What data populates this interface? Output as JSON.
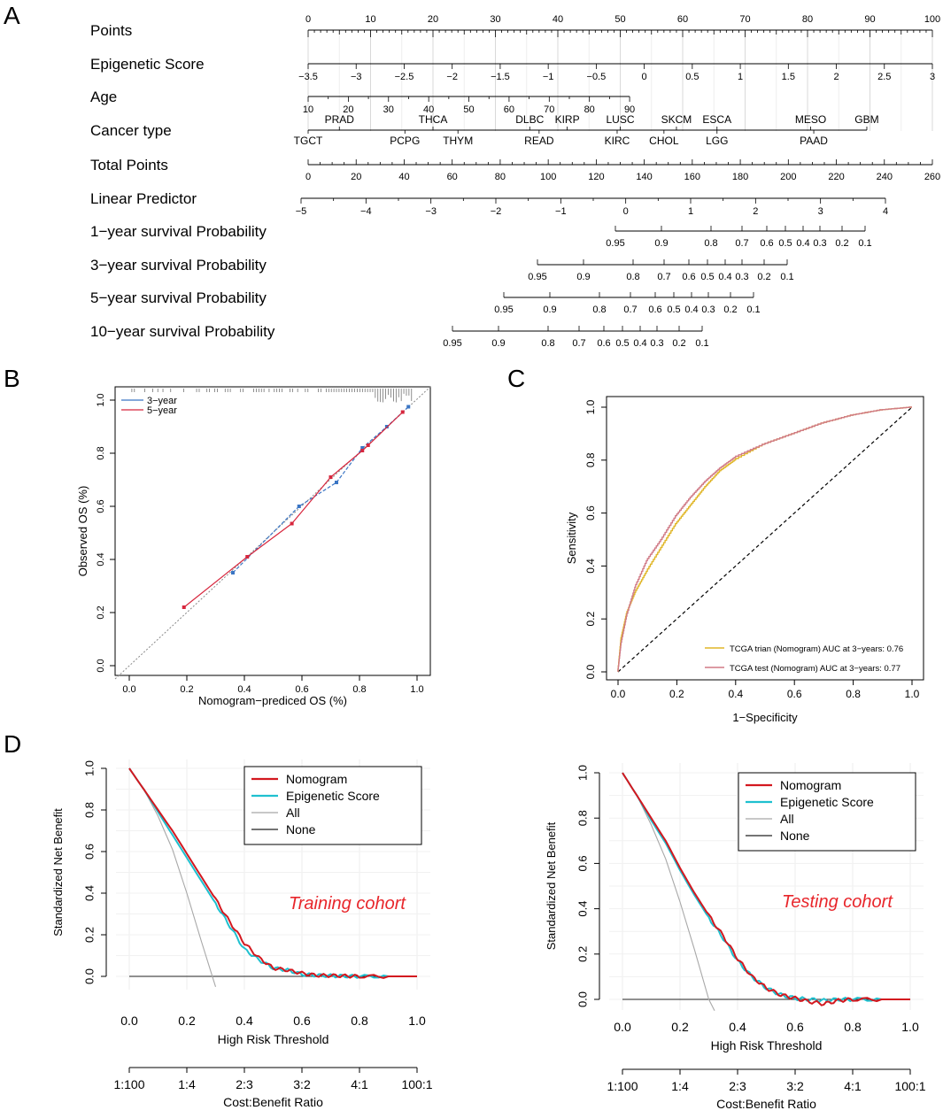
{
  "panels": {
    "A": "A",
    "B": "B",
    "C": "C",
    "D": "D"
  },
  "chart_data": [
    {
      "panel": "A",
      "type": "nomogram",
      "rows": [
        {
          "name": "Points",
          "min": 0,
          "max": 100,
          "labels": [
            "0",
            "10",
            "20",
            "30",
            "40",
            "50",
            "60",
            "70",
            "80",
            "90",
            "100"
          ]
        },
        {
          "name": "Epigenetic Score",
          "values": [
            -3.5,
            -3,
            -2.5,
            -2,
            -1.5,
            -1,
            -0.5,
            0,
            0.5,
            1,
            1.5,
            2,
            2.5,
            3
          ],
          "labels": [
            "−3.5",
            "−3",
            "−2.5",
            "−2",
            "−1.5",
            "−1",
            "−0.5",
            "0",
            "0.5",
            "1",
            "1.5",
            "2",
            "2.5",
            "3"
          ]
        },
        {
          "name": "Age",
          "values": [
            10,
            20,
            30,
            40,
            50,
            60,
            70,
            80,
            90
          ],
          "labels": [
            "10",
            "20",
            "30",
            "40",
            "50",
            "60",
            "70",
            "80",
            "90"
          ]
        },
        {
          "name": "Cancer type",
          "upper": [
            {
              "label": "PRAD",
              "points": 5
            },
            {
              "label": "THCA",
              "points": 20
            },
            {
              "label": "DLBC",
              "points": 35.5
            },
            {
              "label": "KIRP",
              "points": 41.5
            },
            {
              "label": "LUSC",
              "points": 50
            },
            {
              "label": "SKCM",
              "points": 59
            },
            {
              "label": "ESCA",
              "points": 65.5
            },
            {
              "label": "MESO",
              "points": 80.5
            },
            {
              "label": "GBM",
              "points": 89.5
            }
          ],
          "lower": [
            {
              "label": "TGCT",
              "points": 0
            },
            {
              "label": "PCPG",
              "points": 15.5
            },
            {
              "label": "THYM",
              "points": 24
            },
            {
              "label": "READ",
              "points": 37
            },
            {
              "label": "KIRC",
              "points": 49.5
            },
            {
              "label": "CHOL",
              "points": 57
            },
            {
              "label": "LGG",
              "points": 65.5
            },
            {
              "label": "PAAD",
              "points": 81
            }
          ]
        },
        {
          "name": "Total Points",
          "min": 0,
          "max": 260,
          "labels": [
            "0",
            "20",
            "40",
            "60",
            "80",
            "100",
            "120",
            "140",
            "160",
            "180",
            "200",
            "220",
            "240",
            "260"
          ]
        },
        {
          "name": "Linear Predictor",
          "values": [
            -5,
            -4,
            -3,
            -2,
            -1,
            0,
            1,
            2,
            3,
            4
          ],
          "labels": [
            "−5",
            "−4",
            "−3",
            "−2",
            "−1",
            "0",
            "1",
            "2",
            "3",
            "4"
          ]
        },
        {
          "name": "1−year survival Probability",
          "labels": [
            "0.95",
            "0.9",
            "0.8",
            "0.7",
            "0.6",
            "0.5",
            "0.4",
            "0.3",
            "0.2",
            "0.1"
          ]
        },
        {
          "name": "3−year survival Probability",
          "labels": [
            "0.95",
            "0.9",
            "0.8",
            "0.7",
            "0.6",
            "0.5",
            "0.4",
            "0.3",
            "0.2",
            "0.1"
          ]
        },
        {
          "name": "5−year survival Probability",
          "labels": [
            "0.95",
            "0.9",
            "0.8",
            "0.7",
            "0.6",
            "0.5",
            "0.4",
            "0.3",
            "0.2",
            "0.1"
          ]
        },
        {
          "name": "10−year survival Probability",
          "labels": [
            "0.95",
            "0.9",
            "0.8",
            "0.7",
            "0.6",
            "0.5",
            "0.4",
            "0.3",
            "0.2",
            "0.1"
          ]
        }
      ]
    },
    {
      "panel": "B",
      "type": "line",
      "xlabel": "Nomogram−prediced OS (%)",
      "ylabel": "Observed OS (%)",
      "xlim": [
        0,
        1
      ],
      "ylim": [
        0,
        1
      ],
      "xticks": [
        "0.0",
        "0.2",
        "0.4",
        "0.6",
        "0.8",
        "1.0"
      ],
      "yticks": [
        "0.0",
        "0.2",
        "0.4",
        "0.6",
        "0.8",
        "1.0"
      ],
      "series": [
        {
          "name": "3−year",
          "color": "#3a75c4",
          "x": [
            0.36,
            0.59,
            0.72,
            0.81,
            0.895,
            0.97
          ],
          "y": [
            0.35,
            0.6,
            0.69,
            0.82,
            0.9,
            0.975
          ]
        },
        {
          "name": "5−year",
          "color": "#d7263d",
          "x": [
            0.19,
            0.41,
            0.565,
            0.7,
            0.81,
            0.83,
            0.95
          ],
          "y": [
            0.22,
            0.41,
            0.535,
            0.71,
            0.81,
            0.83,
            0.955
          ]
        }
      ]
    },
    {
      "panel": "C",
      "type": "line",
      "xlabel": "1−Specificity",
      "ylabel": "Sensitivity",
      "xlim": [
        0,
        1
      ],
      "ylim": [
        0,
        1
      ],
      "xticks": [
        "0.0",
        "0.2",
        "0.4",
        "0.6",
        "0.8",
        "1.0"
      ],
      "yticks": [
        "0.0",
        "0.2",
        "0.4",
        "0.6",
        "0.8",
        "1.0"
      ],
      "series": [
        {
          "name": "TCGA trian (Nomogram) AUC at 3−years: 0.76",
          "color": "#e0b628",
          "x": [
            0,
            0.01,
            0.03,
            0.06,
            0.1,
            0.15,
            0.2,
            0.25,
            0.3,
            0.35,
            0.4,
            0.5,
            0.6,
            0.7,
            0.8,
            0.9,
            1.0
          ],
          "y": [
            0,
            0.12,
            0.22,
            0.3,
            0.38,
            0.47,
            0.56,
            0.63,
            0.7,
            0.76,
            0.8,
            0.86,
            0.9,
            0.94,
            0.97,
            0.99,
            1.0
          ]
        },
        {
          "name": "TCGA test (Nomogram) AUC at 3−years: 0.77",
          "color": "#d07a86",
          "x": [
            0,
            0.01,
            0.03,
            0.06,
            0.1,
            0.15,
            0.2,
            0.25,
            0.3,
            0.35,
            0.4,
            0.5,
            0.6,
            0.7,
            0.8,
            0.9,
            1.0
          ],
          "y": [
            0,
            0.1,
            0.21,
            0.32,
            0.42,
            0.5,
            0.59,
            0.66,
            0.72,
            0.77,
            0.81,
            0.86,
            0.9,
            0.94,
            0.97,
            0.99,
            1.0
          ]
        }
      ],
      "reference": "diagonal"
    },
    {
      "panel": "D-left",
      "type": "line",
      "xlabel": "High Risk Threshold",
      "ylabel": "Standardized Net Benefit",
      "x2label": "Cost:Benefit Ratio",
      "xlim": [
        0,
        1
      ],
      "ylim": [
        0,
        1
      ],
      "xticks": [
        "0.0",
        "0.2",
        "0.4",
        "0.6",
        "0.8",
        "1.0"
      ],
      "yticks": [
        "0.0",
        "0.2",
        "0.4",
        "0.6",
        "0.8",
        "1.0"
      ],
      "x2ticks": [
        "1:100",
        "1:4",
        "2:3",
        "3:2",
        "4:1",
        "100:1"
      ],
      "annotation": "Training cohort",
      "series": [
        {
          "name": "Nomogram",
          "color": "#d3181f",
          "x": [
            0,
            0.05,
            0.1,
            0.15,
            0.2,
            0.25,
            0.3,
            0.35,
            0.4,
            0.45,
            0.5,
            0.55,
            0.6,
            0.65,
            0.7,
            0.75,
            0.8,
            0.9,
            1.0
          ],
          "y": [
            1,
            0.9,
            0.8,
            0.7,
            0.59,
            0.48,
            0.37,
            0.26,
            0.16,
            0.09,
            0.04,
            0.03,
            0.015,
            0.005,
            0.004,
            0.002,
            0,
            0,
            0
          ]
        },
        {
          "name": "Epigenetic Score",
          "color": "#1fc0cf",
          "x": [
            0,
            0.05,
            0.1,
            0.15,
            0.2,
            0.25,
            0.3,
            0.35,
            0.4,
            0.45,
            0.5,
            0.55,
            0.6,
            0.65,
            0.7,
            0.75,
            0.8,
            0.9,
            1.0
          ],
          "y": [
            1,
            0.9,
            0.79,
            0.68,
            0.57,
            0.46,
            0.35,
            0.24,
            0.13,
            0.08,
            0.04,
            0.03,
            0.01,
            0.005,
            0.003,
            0.001,
            0,
            0,
            0
          ]
        },
        {
          "name": "All",
          "color": "#a8a8a8",
          "x": [
            0,
            0.05,
            0.1,
            0.15,
            0.2,
            0.25,
            0.3
          ],
          "y": [
            1,
            0.9,
            0.77,
            0.61,
            0.4,
            0.17,
            -0.05
          ]
        },
        {
          "name": "None",
          "color": "#222222",
          "x": [
            0,
            1
          ],
          "y": [
            0,
            0
          ]
        }
      ]
    },
    {
      "panel": "D-right",
      "type": "line",
      "xlabel": "High Risk Threshold",
      "ylabel": "Standardized Net Benefit",
      "x2label": "Cost:Benefit Ratio",
      "xlim": [
        0,
        1
      ],
      "ylim": [
        0,
        1
      ],
      "xticks": [
        "0.0",
        "0.2",
        "0.4",
        "0.6",
        "0.8",
        "1.0"
      ],
      "yticks": [
        "0.0",
        "0.2",
        "0.4",
        "0.6",
        "0.8",
        "1.0"
      ],
      "x2ticks": [
        "1:100",
        "1:4",
        "2:3",
        "3:2",
        "4:1",
        "100:1"
      ],
      "annotation": "Testing cohort",
      "series": [
        {
          "name": "Nomogram",
          "color": "#d3181f",
          "x": [
            0,
            0.05,
            0.1,
            0.15,
            0.2,
            0.25,
            0.3,
            0.35,
            0.4,
            0.45,
            0.5,
            0.55,
            0.6,
            0.65,
            0.7,
            0.75,
            0.8,
            0.9,
            1.0
          ],
          "y": [
            1,
            0.9,
            0.8,
            0.7,
            0.58,
            0.47,
            0.37,
            0.28,
            0.18,
            0.1,
            0.05,
            0.02,
            0.005,
            -0.01,
            -0.02,
            -0.005,
            0,
            0,
            0
          ]
        },
        {
          "name": "Epigenetic Score",
          "color": "#1fc0cf",
          "x": [
            0,
            0.05,
            0.1,
            0.15,
            0.2,
            0.25,
            0.3,
            0.35,
            0.4,
            0.45,
            0.5,
            0.55,
            0.6,
            0.65,
            0.7,
            0.75,
            0.8,
            0.9,
            1.0
          ],
          "y": [
            1,
            0.9,
            0.79,
            0.69,
            0.57,
            0.46,
            0.36,
            0.27,
            0.17,
            0.1,
            0.05,
            0.02,
            0.005,
            0,
            -0.005,
            0,
            0,
            0,
            0
          ]
        },
        {
          "name": "All",
          "color": "#a8a8a8",
          "x": [
            0,
            0.05,
            0.1,
            0.15,
            0.2,
            0.25,
            0.3,
            0.32
          ],
          "y": [
            1,
            0.9,
            0.77,
            0.62,
            0.43,
            0.22,
            0,
            -0.05
          ]
        },
        {
          "name": "None",
          "color": "#222222",
          "x": [
            0,
            1
          ],
          "y": [
            0,
            0
          ]
        }
      ]
    }
  ]
}
